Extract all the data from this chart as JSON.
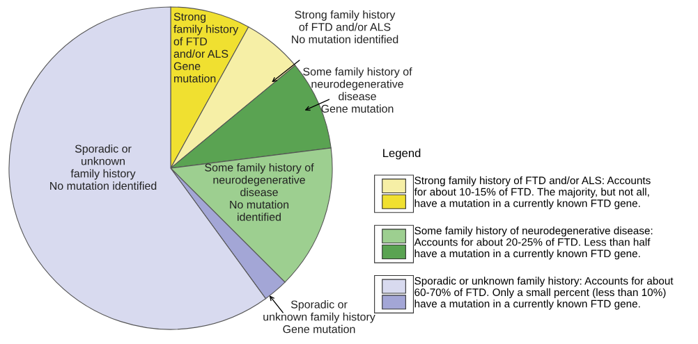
{
  "chart_data": {
    "type": "pie",
    "categories": [
      "Strong\nfamily history\nof FTD\nand/or ALS\nGene\nmutation",
      "Strong family history\nof FTD and/or ALS\nNo mutation identified",
      "Some family history of\nneurodegenerative\ndisease\nGene mutation",
      "Some family history of\nneurodegenerative\ndisease\nNo mutation\nidentified",
      "Sporadic or\nunknown family history\nGene mutation",
      "Sporadic or\nunknown\nfamily history\nNo mutation identified"
    ],
    "values": [
      8,
      6,
      9,
      14.5,
      2.5,
      60
    ],
    "colors": [
      "#f0e030",
      "#f6efa6",
      "#5aa352",
      "#9dcf90",
      "#a3a6d6",
      "#d8daef"
    ],
    "legend_title": "Legend",
    "annotations": [
      "Strong family history of FTD and/or ALS: Accounts\nfor about 10-15% of FTD. The majority, but not all,\nhave a mutation in a currently known FTD gene.",
      "Some family history of neurodegenerative disease:\nAccounts for about 20-25% of FTD. Less than half\nhave a mutation in a currently known FTD gene.",
      "Sporadic or unknown family history: Accounts for about\n60-70% of FTD. Only a small percent (less than 10%)\nhave a mutation in a currently known FTD gene."
    ]
  }
}
